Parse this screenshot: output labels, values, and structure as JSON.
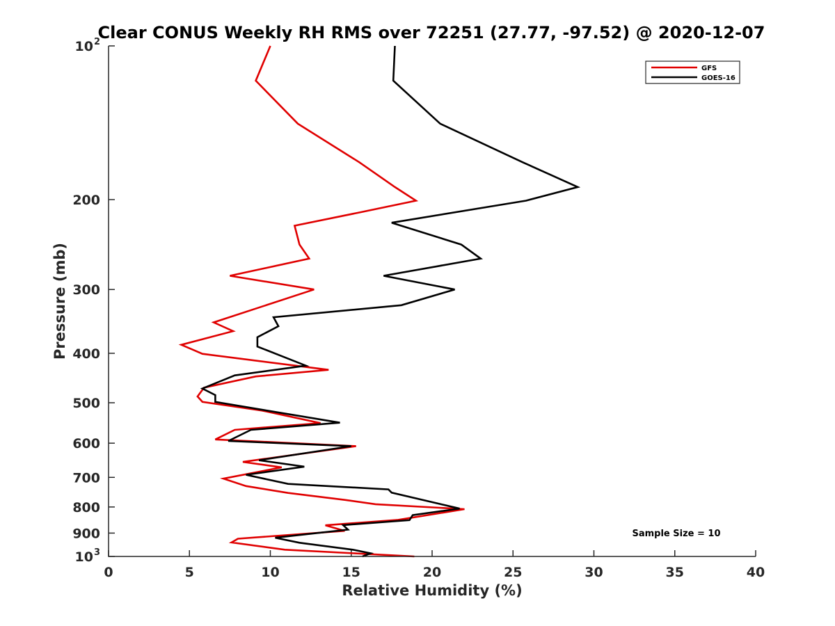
{
  "chart_data": {
    "type": "line",
    "title": "Clear CONUS Weekly RH RMS over 72251 (27.77, -97.52) @ 2020-12-07",
    "xlabel": "Relative Humidity (%)",
    "ylabel": "Pressure (mb)",
    "xlim": [
      0,
      40
    ],
    "ylim": [
      100,
      1000
    ],
    "y_scale": "log",
    "y_reversed": true,
    "grid": false,
    "legend_position": "top-right",
    "x_ticks": [
      "0",
      "5",
      "10",
      "15",
      "20",
      "25",
      "30",
      "35",
      "40"
    ],
    "y_ticks": [
      {
        "value": 100,
        "base": "10",
        "exp": "2"
      },
      {
        "value": 200,
        "label": "200"
      },
      {
        "value": 300,
        "label": "300"
      },
      {
        "value": 400,
        "label": "400"
      },
      {
        "value": 500,
        "label": "500"
      },
      {
        "value": 600,
        "label": "600"
      },
      {
        "value": 700,
        "label": "700"
      },
      {
        "value": 800,
        "label": "800"
      },
      {
        "value": 900,
        "label": "900"
      },
      {
        "value": 1000,
        "base": "10",
        "exp": "3"
      }
    ],
    "series": [
      {
        "name": "GFS",
        "color": "#e00000",
        "points": [
          [
            10.0,
            100
          ],
          [
            9.1,
            117
          ],
          [
            11.7,
            142
          ],
          [
            15.5,
            169
          ],
          [
            17.7,
            189
          ],
          [
            19.0,
            201
          ],
          [
            15.5,
            212
          ],
          [
            11.5,
            225
          ],
          [
            11.8,
            245
          ],
          [
            12.4,
            261
          ],
          [
            7.5,
            282
          ],
          [
            12.7,
            300
          ],
          [
            6.5,
            348
          ],
          [
            7.7,
            362
          ],
          [
            4.5,
            385
          ],
          [
            5.8,
            401
          ],
          [
            13.6,
            431
          ],
          [
            9.1,
            444
          ],
          [
            5.9,
            467
          ],
          [
            5.5,
            486
          ],
          [
            5.8,
            498
          ],
          [
            9.5,
            518
          ],
          [
            13.1,
            548
          ],
          [
            7.8,
            565
          ],
          [
            6.6,
            590
          ],
          [
            15.3,
            608
          ],
          [
            8.3,
            653
          ],
          [
            10.7,
            669
          ],
          [
            7.1,
            704
          ],
          [
            8.5,
            728
          ],
          [
            11.1,
            751
          ],
          [
            14.6,
            775
          ],
          [
            16.5,
            790
          ],
          [
            22.0,
            808
          ],
          [
            17.9,
            848
          ],
          [
            13.4,
            869
          ],
          [
            14.6,
            891
          ],
          [
            8.0,
            923
          ],
          [
            7.6,
            939
          ],
          [
            10.9,
            970
          ],
          [
            18.9,
            1000
          ]
        ]
      },
      {
        "name": "GOES-16",
        "color": "#000000",
        "points": [
          [
            17.7,
            100
          ],
          [
            17.6,
            117
          ],
          [
            20.5,
            142
          ],
          [
            25.6,
            169
          ],
          [
            29.0,
            189
          ],
          [
            25.8,
            201
          ],
          [
            17.5,
            222
          ],
          [
            21.8,
            245
          ],
          [
            23.0,
            261
          ],
          [
            17.0,
            282
          ],
          [
            21.4,
            300
          ],
          [
            18.1,
            322
          ],
          [
            10.2,
            340
          ],
          [
            10.5,
            354
          ],
          [
            9.2,
            372
          ],
          [
            9.2,
            388
          ],
          [
            12.2,
            423
          ],
          [
            7.8,
            442
          ],
          [
            5.8,
            469
          ],
          [
            6.6,
            483
          ],
          [
            6.6,
            498
          ],
          [
            9.8,
            518
          ],
          [
            14.3,
            547
          ],
          [
            8.8,
            565
          ],
          [
            7.4,
            594
          ],
          [
            15.0,
            608
          ],
          [
            9.3,
            648
          ],
          [
            12.1,
            667
          ],
          [
            8.5,
            692
          ],
          [
            11.1,
            721
          ],
          [
            17.3,
            739
          ],
          [
            17.5,
            750
          ],
          [
            21.7,
            806
          ],
          [
            18.8,
            830
          ],
          [
            18.6,
            849
          ],
          [
            14.5,
            868
          ],
          [
            14.8,
            886
          ],
          [
            10.3,
            919
          ],
          [
            11.8,
            940
          ],
          [
            15.1,
            970
          ],
          [
            16.2,
            986
          ],
          [
            15.7,
            1000
          ]
        ]
      }
    ],
    "annotation": "Sample Size = 10"
  }
}
